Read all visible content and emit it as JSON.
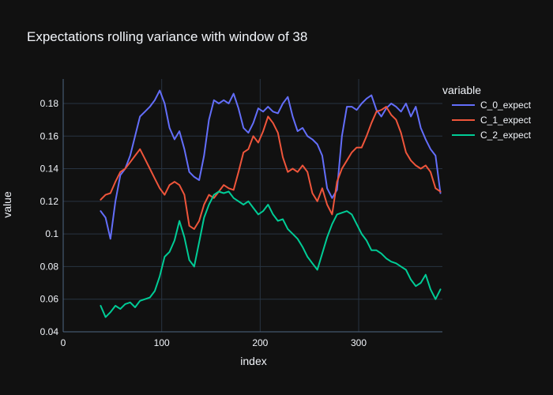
{
  "chart_data": {
    "type": "line",
    "title": "Expectations rolling variance with window of 38",
    "xlabel": "index",
    "ylabel": "value",
    "xlim": [
      0,
      385
    ],
    "ylim": [
      0.04,
      0.195
    ],
    "x_ticks": [
      0,
      100,
      200,
      300
    ],
    "x_tick_labels": [
      "0",
      "100",
      "200",
      "300"
    ],
    "y_ticks": [
      0.04,
      0.06,
      0.08,
      0.1,
      0.12,
      0.14,
      0.16,
      0.18
    ],
    "y_tick_labels": [
      "0.04",
      "0.06",
      "0.08",
      "0.1",
      "0.12",
      "0.14",
      "0.16",
      "0.18"
    ],
    "grid": true,
    "legend": {
      "title": "variable",
      "position": "top-right"
    },
    "x_start": 38,
    "x_step": 5,
    "series": [
      {
        "name": "C_0_expect",
        "color": "#636efa",
        "values": [
          0.114,
          0.11,
          0.097,
          0.12,
          0.136,
          0.14,
          0.148,
          0.16,
          0.172,
          0.175,
          0.178,
          0.182,
          0.188,
          0.18,
          0.165,
          0.158,
          0.163,
          0.152,
          0.138,
          0.135,
          0.133,
          0.148,
          0.17,
          0.182,
          0.18,
          0.182,
          0.18,
          0.186,
          0.177,
          0.165,
          0.162,
          0.168,
          0.177,
          0.175,
          0.178,
          0.175,
          0.174,
          0.18,
          0.184,
          0.172,
          0.163,
          0.165,
          0.16,
          0.158,
          0.155,
          0.148,
          0.128,
          0.122,
          0.127,
          0.16,
          0.178,
          0.178,
          0.176,
          0.18,
          0.183,
          0.185,
          0.176,
          0.172,
          0.177,
          0.18,
          0.178,
          0.175,
          0.18,
          0.172,
          0.178,
          0.165,
          0.158,
          0.152,
          0.148,
          0.125
        ]
      },
      {
        "name": "C_1_expect",
        "color": "#ef553b",
        "values": [
          0.121,
          0.124,
          0.125,
          0.132,
          0.138,
          0.14,
          0.144,
          0.148,
          0.152,
          0.146,
          0.14,
          0.134,
          0.128,
          0.124,
          0.13,
          0.132,
          0.13,
          0.124,
          0.105,
          0.103,
          0.108,
          0.118,
          0.124,
          0.122,
          0.126,
          0.13,
          0.128,
          0.127,
          0.138,
          0.15,
          0.152,
          0.16,
          0.156,
          0.163,
          0.172,
          0.168,
          0.162,
          0.147,
          0.138,
          0.14,
          0.138,
          0.142,
          0.138,
          0.125,
          0.12,
          0.128,
          0.118,
          0.112,
          0.132,
          0.14,
          0.145,
          0.15,
          0.153,
          0.153,
          0.16,
          0.168,
          0.175,
          0.176,
          0.178,
          0.173,
          0.17,
          0.162,
          0.15,
          0.145,
          0.142,
          0.14,
          0.142,
          0.138,
          0.128,
          0.126
        ]
      },
      {
        "name": "C_2_expect",
        "color": "#00cc96",
        "values": [
          0.056,
          0.049,
          0.052,
          0.056,
          0.054,
          0.057,
          0.058,
          0.055,
          0.059,
          0.06,
          0.061,
          0.065,
          0.074,
          0.086,
          0.089,
          0.096,
          0.108,
          0.098,
          0.084,
          0.08,
          0.095,
          0.11,
          0.118,
          0.124,
          0.126,
          0.125,
          0.126,
          0.122,
          0.12,
          0.118,
          0.12,
          0.116,
          0.112,
          0.114,
          0.118,
          0.112,
          0.108,
          0.109,
          0.103,
          0.1,
          0.097,
          0.092,
          0.086,
          0.082,
          0.078,
          0.088,
          0.098,
          0.106,
          0.112,
          0.113,
          0.114,
          0.112,
          0.106,
          0.1,
          0.096,
          0.09,
          0.09,
          0.088,
          0.085,
          0.083,
          0.082,
          0.08,
          0.078,
          0.072,
          0.068,
          0.07,
          0.075,
          0.066,
          0.06,
          0.066
        ]
      }
    ]
  }
}
